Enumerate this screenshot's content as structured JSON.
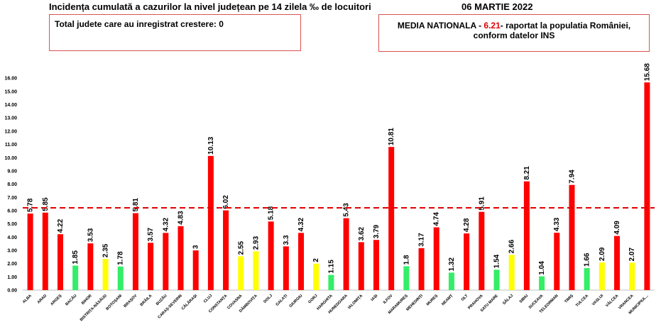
{
  "header": {
    "title": "Incidența cumulată a cazurilor la nivel județean pe 14 zilela ‰ de locuitori",
    "date": "06 MARTIE 2022"
  },
  "info_left": {
    "text": "Total judete care au inregistrat crestere: 0"
  },
  "info_right": {
    "prefix": "MEDIA NATIONALA - ",
    "value": "6.21",
    "suffix": "-  raportat la populatia României,",
    "line2": "conform datelor INS"
  },
  "colors": {
    "red": "#ff0000",
    "yellow": "#ffff00",
    "green": "#33ee66",
    "reference_line": "#e00000"
  },
  "chart_data": {
    "type": "bar",
    "title": "Incidența cumulată a cazurilor la nivel județean pe 14 zilela ‰ de locuitori",
    "xlabel": "",
    "ylabel": "",
    "ylim": [
      0,
      16.6
    ],
    "yticks": [
      "0.00",
      "1.00",
      "2.00",
      "3.00",
      "4.00",
      "5.00",
      "6.00",
      "7.00",
      "8.00",
      "9.00",
      "10.00",
      "11.00",
      "12.00",
      "13.00",
      "14.00",
      "15.00",
      "16.00"
    ],
    "grid": false,
    "reference_line": {
      "value": 6.21,
      "style": "dashed",
      "label": "MEDIA NATIONALA"
    },
    "categories": [
      "ALBA",
      "ARAD",
      "ARGEȘ",
      "BACĂU",
      "BIHOR",
      "BISTRIȚA-NĂSĂUD",
      "BOTOȘANI",
      "BRAȘOV",
      "BRĂILA",
      "BUZĂU",
      "CARAȘ-SEVERIN",
      "CĂLĂRAȘI",
      "CLUJ",
      "CONSTANȚA",
      "COVASNA",
      "DÂMBOVIȚA",
      "DOLJ",
      "GALAȚI",
      "GIURGIU",
      "GORJ",
      "HARGHITA",
      "HUNEDOARA",
      "IALOMIȚA",
      "IAȘI",
      "ILFOV",
      "MARAMUREȘ",
      "MEHEDINȚI",
      "MUREȘ",
      "NEAMȚ",
      "OLT",
      "PRAHOVA",
      "SATU MARE",
      "SĂLAJ",
      "SIBIU",
      "SUCEAVA",
      "TELEORMAN",
      "TIMIȘ",
      "TULCEA",
      "VASLUI",
      "VÂLCEA",
      "VRANCEA",
      "MUNICIPIUL..."
    ],
    "values": [
      5.78,
      5.85,
      4.22,
      1.85,
      3.53,
      2.35,
      1.78,
      5.81,
      3.57,
      4.32,
      4.83,
      3,
      10.13,
      6.02,
      2.55,
      2.93,
      5.18,
      3.3,
      4.32,
      2,
      1.15,
      5.43,
      3.62,
      3.79,
      10.81,
      1.8,
      3.17,
      4.74,
      1.32,
      4.28,
      5.91,
      1.54,
      2.66,
      8.21,
      1.04,
      4.33,
      7.94,
      1.66,
      2.09,
      4.09,
      2.07,
      15.68
    ],
    "value_labels": [
      "5.78",
      "5.85",
      "4.22",
      "1.85",
      "3.53",
      "2.35",
      "1.78",
      "5.81",
      "3.57",
      "4.32",
      "4.83",
      "3",
      "10.13",
      "6.02",
      "2.55",
      "2.93",
      "5.18",
      "3.3",
      "4.32",
      "2",
      "1.15",
      "5.43",
      "3.62",
      "3.79",
      "10.81",
      "1.8",
      "3.17",
      "4.74",
      "1.32",
      "4.28",
      "5.91",
      "1.54",
      "2.66",
      "8.21",
      "1.04",
      "4.33",
      "7.94",
      "1.66",
      "2.09",
      "4.09",
      "2.07",
      "15.68"
    ],
    "bar_colors": [
      "red",
      "red",
      "red",
      "green",
      "red",
      "yellow",
      "green",
      "red",
      "red",
      "red",
      "red",
      "red",
      "red",
      "red",
      "yellow",
      "yellow",
      "red",
      "red",
      "red",
      "yellow",
      "green",
      "red",
      "red",
      "red",
      "red",
      "green",
      "red",
      "red",
      "green",
      "red",
      "red",
      "green",
      "yellow",
      "red",
      "green",
      "red",
      "red",
      "green",
      "yellow",
      "red",
      "yellow",
      "red"
    ]
  }
}
